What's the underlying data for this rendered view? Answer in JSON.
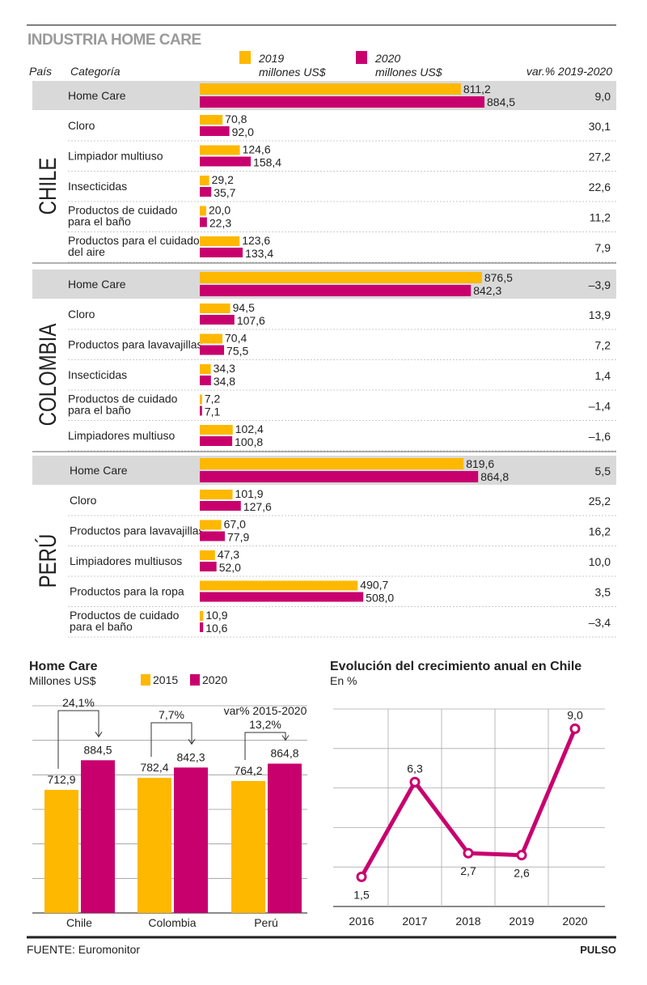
{
  "title": "INDUSTRIA HOME CARE",
  "header": {
    "country_col": "País",
    "category_col": "Categoría",
    "legend": [
      {
        "year": "2019",
        "unit": "millones US$",
        "color": "#FFB800"
      },
      {
        "year": "2020",
        "unit": "millones US$",
        "color": "#C8006E"
      }
    ],
    "var_col": "var.% 2019-2020"
  },
  "colors": {
    "c2019": "#FFB800",
    "c2020": "#C8006E",
    "highlight_row": "#D9D9D9",
    "title_gray": "#9A9A9A"
  },
  "chart_data": [
    {
      "type": "bar",
      "orientation": "horizontal",
      "series": [
        {
          "name": "2019 millones US$"
        },
        {
          "name": "2020 millones US$"
        }
      ],
      "sections": [
        {
          "country": "CHILE",
          "rows": [
            {
              "category": [
                "Home Care"
              ],
              "v2019": 811.2,
              "v2020": 884.5,
              "var": "9,0",
              "highlight": true
            },
            {
              "category": [
                "Cloro"
              ],
              "v2019": 70.8,
              "v2020": 92.0,
              "var": "30,1"
            },
            {
              "category": [
                "Limpiador multiuso"
              ],
              "v2019": 124.6,
              "v2020": 158.4,
              "var": "27,2"
            },
            {
              "category": [
                "Insecticidas"
              ],
              "v2019": 29.2,
              "v2020": 35.7,
              "var": "22,6"
            },
            {
              "category": [
                "Productos de cuidado",
                "para el baño"
              ],
              "v2019": 20.0,
              "v2020": 22.3,
              "var": "11,2"
            },
            {
              "category": [
                "Productos para el cuidado",
                "del aire"
              ],
              "v2019": 123.6,
              "v2020": 133.4,
              "var": "7,9"
            }
          ]
        },
        {
          "country": "COLOMBIA",
          "rows": [
            {
              "category": [
                "Home Care"
              ],
              "v2019": 876.5,
              "v2020": 842.3,
              "var": "-3,9",
              "highlight": true
            },
            {
              "category": [
                "Cloro"
              ],
              "v2019": 94.5,
              "v2020": 107.6,
              "var": "13,9"
            },
            {
              "category": [
                "Productos para lavavajillas"
              ],
              "v2019": 70.4,
              "v2020": 75.5,
              "var": "7,2"
            },
            {
              "category": [
                "Insecticidas"
              ],
              "v2019": 34.3,
              "v2020": 34.8,
              "var": "1,4"
            },
            {
              "category": [
                "Productos de cuidado",
                "para el baño"
              ],
              "v2019": 7.2,
              "v2020": 7.1,
              "var": "-1,4"
            },
            {
              "category": [
                "Limpiadores multiuso"
              ],
              "v2019": 102.4,
              "v2020": 100.8,
              "var": "-1,6"
            }
          ]
        },
        {
          "country": "PERÚ",
          "rows": [
            {
              "category": [
                "Home Care"
              ],
              "v2019": 819.6,
              "v2020": 864.8,
              "var": "5,5",
              "highlight": true
            },
            {
              "category": [
                "Cloro"
              ],
              "v2019": 101.9,
              "v2020": 127.6,
              "var": "25,2"
            },
            {
              "category": [
                "Productos para lavavajillas"
              ],
              "v2019": 67.0,
              "v2020": 77.9,
              "var": "16,2"
            },
            {
              "category": [
                "Limpiadores multiusos"
              ],
              "v2019": 47.3,
              "v2020": 52.0,
              "var": "10,0"
            },
            {
              "category": [
                "Productos para la ropa"
              ],
              "v2019": 490.7,
              "v2020": 508.0,
              "var": "3,5"
            },
            {
              "category": [
                "Productos de cuidado",
                "para el baño"
              ],
              "v2019": 10.9,
              "v2020": 10.6,
              "var": "-3,4"
            }
          ]
        }
      ]
    },
    {
      "type": "bar",
      "title": "Home Care",
      "subtitle": "Millones US$",
      "legend": [
        "2015",
        "2020"
      ],
      "categories": [
        "Chile",
        "Colombia",
        "Perú"
      ],
      "series": [
        {
          "name": "2015",
          "values": [
            712.9,
            782.4,
            764.2
          ]
        },
        {
          "name": "2020",
          "values": [
            884.5,
            842.3,
            864.8
          ]
        }
      ],
      "var_label": "var% 2015-2020",
      "var_values": [
        "24,1%",
        "7,7%",
        "13,2%"
      ],
      "ylim": [
        0,
        1200
      ],
      "grid": true
    },
    {
      "type": "line",
      "title": "Evolución del crecimiento anual en Chile",
      "subtitle": "En %",
      "x": [
        "2016",
        "2017",
        "2018",
        "2019",
        "2020"
      ],
      "y": [
        1.5,
        6.3,
        2.7,
        2.6,
        9.0
      ],
      "ylim": [
        0,
        10
      ],
      "grid": true,
      "color": "#C8006E"
    }
  ],
  "footer": {
    "source": "FUENTE: Euromonitor",
    "brand": "PULSO"
  }
}
